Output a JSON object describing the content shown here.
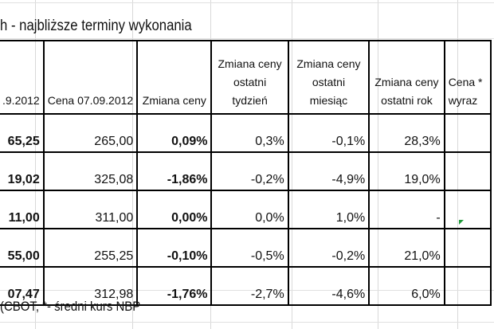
{
  "title": "h - najbliższe terminy wykonania",
  "table": {
    "headers": [
      ".9.2012",
      "Cena 07.09.2012",
      "Zmiana ceny",
      "Zmiana ceny ostatni tydzień",
      "Zmiana ceny ostatni miesiąc",
      "Zmiana ceny ostatni rok",
      "Cena * wyraz"
    ],
    "rows": [
      [
        "65,25",
        "265,00",
        "0,09%",
        "0,3%",
        "-0,1%",
        "28,3%",
        ""
      ],
      [
        "19,02",
        "325,08",
        "-1,86%",
        "-0,2%",
        "-4,9%",
        "19,0%",
        ""
      ],
      [
        "11,00",
        "311,00",
        "0,00%",
        "0,0%",
        "1,0%",
        "-",
        ""
      ],
      [
        "55,00",
        "255,25",
        "-0,10%",
        "-0,5%",
        "-0,2%",
        "21,0%",
        ""
      ],
      [
        "07,47",
        "312,98",
        "-1,76%",
        "-2,7%",
        "-4,6%",
        "6,0%",
        ""
      ]
    ]
  },
  "footer": "(CBOT, *- średni kurs NBP",
  "colors": {
    "border": "#000000",
    "gridline": "#d9d9d9",
    "comment_marker": "#1f9a3a"
  }
}
